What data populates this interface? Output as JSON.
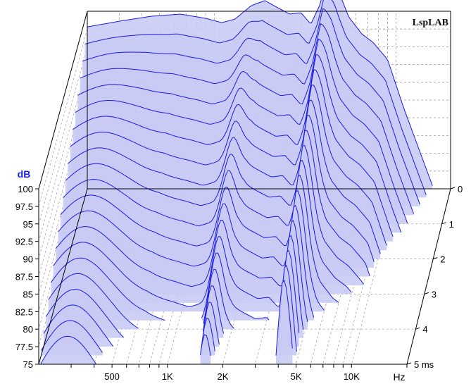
{
  "chart_data": {
    "type": "waterfall",
    "title": "",
    "brand": "LspLAB",
    "y_axis": {
      "label": "dB",
      "range": [
        75,
        100
      ],
      "ticks": [
        "100",
        "97.5",
        "95",
        "92.5",
        "90",
        "87.5",
        "85",
        "82.5",
        "80",
        "77.5",
        "75"
      ]
    },
    "x_axis": {
      "label": "Hz",
      "scale": "log",
      "range": [
        200,
        20000
      ],
      "tick_labels": [
        {
          "value": 500,
          "label": "500"
        },
        {
          "value": 1000,
          "label": "1K"
        },
        {
          "value": 2000,
          "label": "2K"
        },
        {
          "value": 5000,
          "label": "5K"
        },
        {
          "value": 10000,
          "label": "10K"
        }
      ],
      "minor_ticks": [
        300,
        400,
        500,
        600,
        700,
        800,
        900,
        1000,
        2000,
        3000,
        4000,
        5000,
        6000,
        7000,
        8000,
        9000,
        10000,
        20000
      ]
    },
    "z_axis": {
      "label": "ms",
      "range": [
        0,
        5
      ],
      "ticks": [
        "0",
        "1",
        "2",
        "3",
        "4",
        "5 ms"
      ]
    },
    "series_color": "#1a1ae6",
    "fill_color": "#c9cbf4",
    "slice_times_ms": [
      0,
      0.25,
      0.5,
      0.75,
      1,
      1.25,
      1.5,
      1.75,
      2,
      2.25,
      2.5,
      2.75,
      3,
      3.25,
      3.5,
      3.75,
      4,
      4.25,
      4.5,
      4.75,
      5
    ],
    "initial_response_db": [
      {
        "f": 200,
        "db": 97.8
      },
      {
        "f": 300,
        "db": 98.6
      },
      {
        "f": 450,
        "db": 99.3
      },
      {
        "f": 650,
        "db": 99.6
      },
      {
        "f": 900,
        "db": 99.0
      },
      {
        "f": 1100,
        "db": 98.4
      },
      {
        "f": 1300,
        "db": 98.9
      },
      {
        "f": 1600,
        "db": 100.8
      },
      {
        "f": 1900,
        "db": 101.5
      },
      {
        "f": 2200,
        "db": 100.6
      },
      {
        "f": 2600,
        "db": 99.6
      },
      {
        "f": 3000,
        "db": 99.8
      },
      {
        "f": 3400,
        "db": 98.2
      },
      {
        "f": 3800,
        "db": 100.8
      },
      {
        "f": 4200,
        "db": 104.7
      },
      {
        "f": 4700,
        "db": 103.6
      },
      {
        "f": 5500,
        "db": 99.2
      },
      {
        "f": 6500,
        "db": 96.8
      },
      {
        "f": 7500,
        "db": 95.6
      },
      {
        "f": 9000,
        "db": 93.2
      },
      {
        "f": 11000,
        "db": 86.5
      }
    ]
  }
}
